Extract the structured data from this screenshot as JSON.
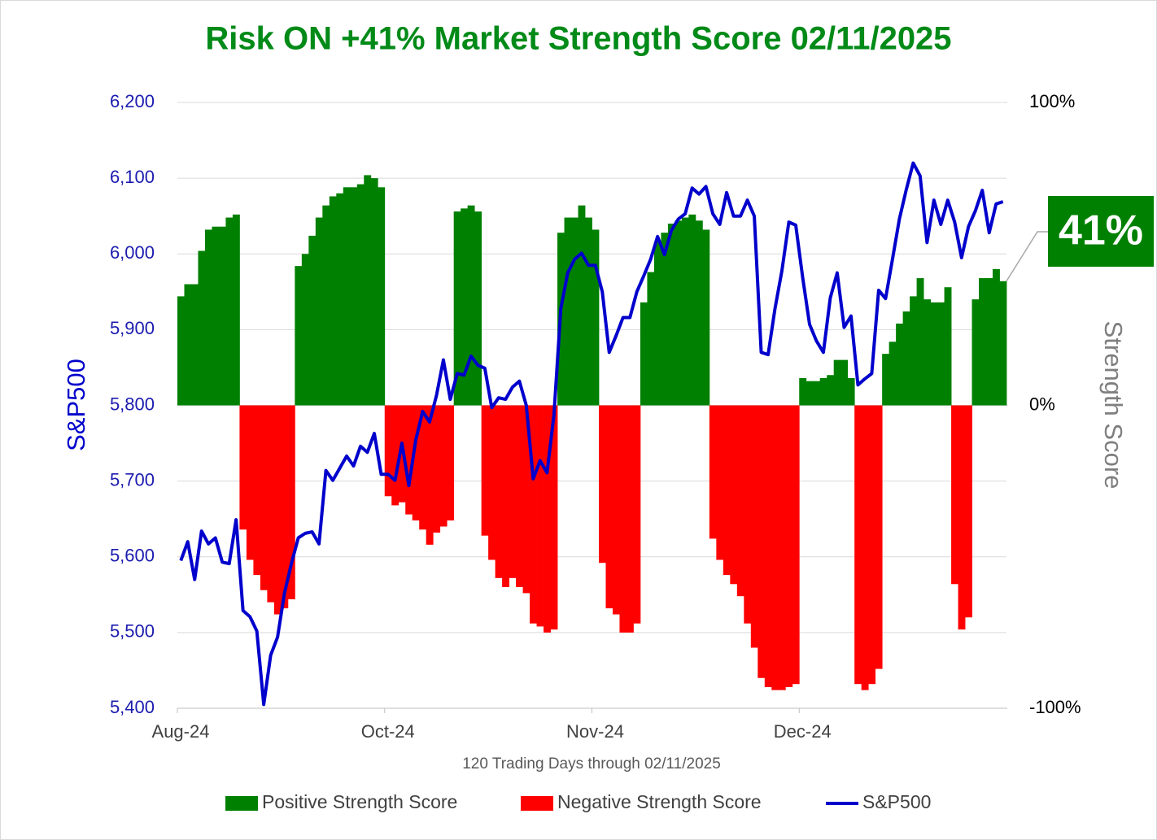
{
  "chart_data": {
    "type": "bar",
    "title": "Risk ON +41% Market Strength Score 02/11/2025",
    "xlabel": "120 Trading Days through 02/11/2025",
    "ylabel": "S&P500",
    "y2label": "Strength Score",
    "categories": [
      "Aug-24",
      null,
      null,
      null,
      null,
      null,
      null,
      null,
      null,
      null,
      null,
      null,
      null,
      null,
      null,
      null,
      null,
      null,
      null,
      null,
      null,
      null,
      null,
      null,
      null,
      null,
      null,
      null,
      null,
      null,
      "Oct-24",
      null,
      null,
      null,
      null,
      null,
      null,
      null,
      null,
      null,
      null,
      null,
      null,
      null,
      null,
      null,
      null,
      null,
      null,
      null,
      null,
      null,
      null,
      null,
      null,
      null,
      null,
      null,
      null,
      null,
      "Nov-24",
      null,
      null,
      null,
      null,
      null,
      null,
      null,
      null,
      null,
      null,
      null,
      null,
      null,
      null,
      null,
      null,
      null,
      null,
      null,
      null,
      null,
      null,
      null,
      null,
      null,
      null,
      null,
      null,
      null,
      "Dec-24",
      null,
      null,
      null,
      null,
      null,
      null,
      null,
      null,
      null,
      null,
      null,
      null,
      null,
      null,
      null,
      null,
      null,
      null,
      null,
      null,
      null,
      null,
      null,
      null,
      null,
      null,
      null,
      null,
      null
    ],
    "ylim": [
      5400,
      6200
    ],
    "yticks": [
      {
        "value": 5400,
        "label": "5,400"
      },
      {
        "value": 5500,
        "label": "5,500"
      },
      {
        "value": 5600,
        "label": "5,600"
      },
      {
        "value": 5700,
        "label": "5,700"
      },
      {
        "value": 5800,
        "label": "5,800"
      },
      {
        "value": 5900,
        "label": "5,900"
      },
      {
        "value": 6000,
        "label": "6,000"
      },
      {
        "value": 6100,
        "label": "6,100"
      },
      {
        "value": 6200,
        "label": "6,200"
      }
    ],
    "y2lim": [
      -100,
      100
    ],
    "y2ticks": [
      {
        "value": -100,
        "label": "-100%"
      },
      {
        "value": 0,
        "label": "0%"
      },
      {
        "value": 100,
        "label": "100%"
      }
    ],
    "grid": true,
    "series": [
      {
        "name": "Positive Strength Score",
        "type": "bar",
        "axis": "y2",
        "color": "#008000",
        "values": [
          36,
          40,
          40,
          51,
          58,
          59,
          59,
          62,
          63,
          null,
          null,
          null,
          null,
          null,
          null,
          null,
          null,
          46,
          50,
          56,
          62,
          66,
          69,
          70,
          72,
          72,
          73,
          76,
          75,
          72,
          null,
          null,
          null,
          null,
          null,
          null,
          null,
          null,
          null,
          null,
          64,
          65,
          66,
          64,
          null,
          null,
          null,
          null,
          null,
          null,
          null,
          null,
          null,
          null,
          null,
          57,
          62,
          62,
          66,
          62,
          58,
          null,
          null,
          null,
          null,
          null,
          null,
          34,
          44,
          54,
          57,
          60,
          61,
          62,
          63,
          61,
          58,
          null,
          null,
          null,
          null,
          null,
          null,
          null,
          null,
          null,
          null,
          null,
          null,
          null,
          9,
          8,
          8,
          9,
          10,
          15,
          15,
          9,
          null,
          null,
          null,
          null,
          17,
          21,
          27,
          31,
          36,
          42,
          35,
          34,
          34,
          39,
          null,
          null,
          null,
          35,
          42,
          42,
          45,
          41
        ],
        "value_labels": [
          null,
          null,
          null,
          null,
          null,
          null,
          null,
          null,
          null,
          null,
          null,
          null,
          null,
          null,
          null,
          null,
          null,
          null,
          null,
          null,
          null,
          null,
          null,
          null,
          null,
          null,
          null,
          null,
          null,
          null,
          null,
          null,
          null,
          null,
          null,
          null,
          null,
          null,
          null,
          null,
          null,
          null,
          null,
          null,
          null,
          null,
          null,
          null,
          null,
          null,
          null,
          null,
          null,
          null,
          null,
          null,
          null,
          null,
          null,
          null,
          null,
          null,
          null,
          null,
          null,
          null,
          null,
          null,
          null,
          null,
          null,
          null,
          null,
          null,
          null,
          null,
          null,
          null,
          null,
          null,
          null,
          null,
          null,
          null,
          null,
          null,
          null,
          null,
          null,
          null,
          null,
          null,
          null,
          null,
          null,
          null,
          null,
          null,
          null,
          null,
          null,
          null,
          null,
          null,
          null,
          null,
          null,
          null,
          null,
          null,
          null,
          null,
          null,
          null,
          null,
          null,
          null,
          null,
          null,
          "41%"
        ]
      },
      {
        "name": "Negative Strength Score",
        "type": "bar",
        "axis": "y2",
        "color": "#ff0000",
        "values": [
          null,
          null,
          null,
          null,
          null,
          null,
          null,
          null,
          null,
          -41,
          -51,
          -56,
          -61,
          -65,
          -69,
          -67,
          -64,
          null,
          null,
          null,
          null,
          null,
          null,
          null,
          null,
          null,
          null,
          null,
          null,
          null,
          -30,
          -33,
          -32,
          -36,
          -38,
          -41,
          -46,
          -42,
          -40,
          -38,
          null,
          null,
          null,
          null,
          -43,
          -51,
          -57,
          -60,
          -57,
          -60,
          -62,
          -72,
          -73,
          -75,
          -74,
          null,
          null,
          null,
          null,
          null,
          null,
          -52,
          -67,
          -69,
          -75,
          -75,
          -72,
          null,
          null,
          null,
          null,
          null,
          null,
          null,
          null,
          null,
          null,
          -44,
          -51,
          -56,
          -59,
          -63,
          -72,
          -80,
          -90,
          -93,
          -94,
          -94,
          -93,
          -92,
          null,
          null,
          null,
          null,
          null,
          null,
          null,
          null,
          -92,
          -94,
          -92,
          -87,
          null,
          null,
          null,
          null,
          null,
          null,
          null,
          null,
          null,
          null,
          -59,
          -74,
          -70,
          null,
          null,
          null,
          null,
          null
        ]
      },
      {
        "name": "S&P500",
        "type": "line",
        "axis": "y",
        "color": "#0000cc",
        "values": [
          5595,
          5620,
          5570,
          5634,
          5617,
          5625,
          5593,
          5591,
          5649,
          5529,
          5521,
          5502,
          5405,
          5470,
          5494,
          5552,
          5591,
          5625,
          5631,
          5633,
          5617,
          5714,
          5701,
          5717,
          5733,
          5720,
          5746,
          5738,
          5763,
          5709,
          5709,
          5701,
          5750,
          5694,
          5754,
          5792,
          5778,
          5813,
          5860,
          5808,
          5842,
          5840,
          5865,
          5853,
          5849,
          5797,
          5810,
          5808,
          5824,
          5832,
          5800,
          5703,
          5727,
          5711,
          5787,
          5928,
          5975,
          5993,
          6001,
          5985,
          5985,
          5950,
          5870,
          5892,
          5916,
          5916,
          5950,
          5971,
          5993,
          6023,
          5999,
          6031,
          6046,
          6053,
          6087,
          6079,
          6089,
          6053,
          6039,
          6081,
          6050,
          6050,
          6071,
          6050,
          5870,
          5867,
          5928,
          5978,
          6042,
          6038,
          5969,
          5907,
          5885,
          5870,
          5942,
          5975,
          5903,
          5918,
          5827,
          5835,
          5842,
          5952,
          5941,
          5993,
          6046,
          6085,
          6120,
          6103,
          6015,
          6071,
          6039,
          6071,
          6042,
          5995,
          6036,
          6057,
          6084,
          6028,
          6066,
          6069
        ]
      }
    ]
  }
}
